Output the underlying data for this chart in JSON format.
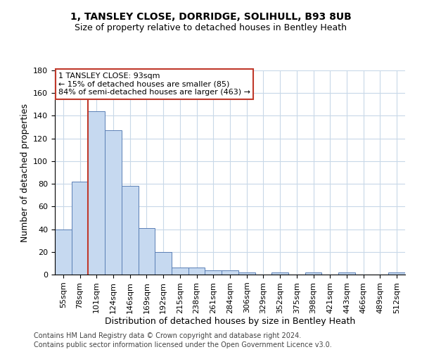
{
  "title": "1, TANSLEY CLOSE, DORRIDGE, SOLIHULL, B93 8UB",
  "subtitle": "Size of property relative to detached houses in Bentley Heath",
  "xlabel": "Distribution of detached houses by size in Bentley Heath",
  "ylabel": "Number of detached properties",
  "categories": [
    "55sqm",
    "78sqm",
    "101sqm",
    "124sqm",
    "146sqm",
    "169sqm",
    "192sqm",
    "215sqm",
    "238sqm",
    "261sqm",
    "284sqm",
    "306sqm",
    "329sqm",
    "352sqm",
    "375sqm",
    "398sqm",
    "421sqm",
    "443sqm",
    "466sqm",
    "489sqm",
    "512sqm"
  ],
  "values": [
    40,
    82,
    144,
    127,
    78,
    41,
    20,
    6,
    6,
    4,
    4,
    2,
    0,
    2,
    0,
    2,
    0,
    2,
    0,
    0,
    2
  ],
  "bar_color": "#c6d9f0",
  "bar_edge_color": "#5a7fb5",
  "grid_color": "#c8d8e8",
  "annotation_text": "1 TANSLEY CLOSE: 93sqm\n← 15% of detached houses are smaller (85)\n84% of semi-detached houses are larger (463) →",
  "annotation_box_color": "#ffffff",
  "annotation_box_edge_color": "#c0392b",
  "vline_color": "#c0392b",
  "footer_line1": "Contains HM Land Registry data © Crown copyright and database right 2024.",
  "footer_line2": "Contains public sector information licensed under the Open Government Licence v3.0.",
  "ylim": [
    0,
    180
  ],
  "yticks": [
    0,
    20,
    40,
    60,
    80,
    100,
    120,
    140,
    160,
    180
  ],
  "background_color": "#ffffff",
  "title_fontsize": 10,
  "subtitle_fontsize": 9,
  "xlabel_fontsize": 9,
  "ylabel_fontsize": 9,
  "tick_fontsize": 8,
  "footer_fontsize": 7,
  "vline_x": 1.5
}
